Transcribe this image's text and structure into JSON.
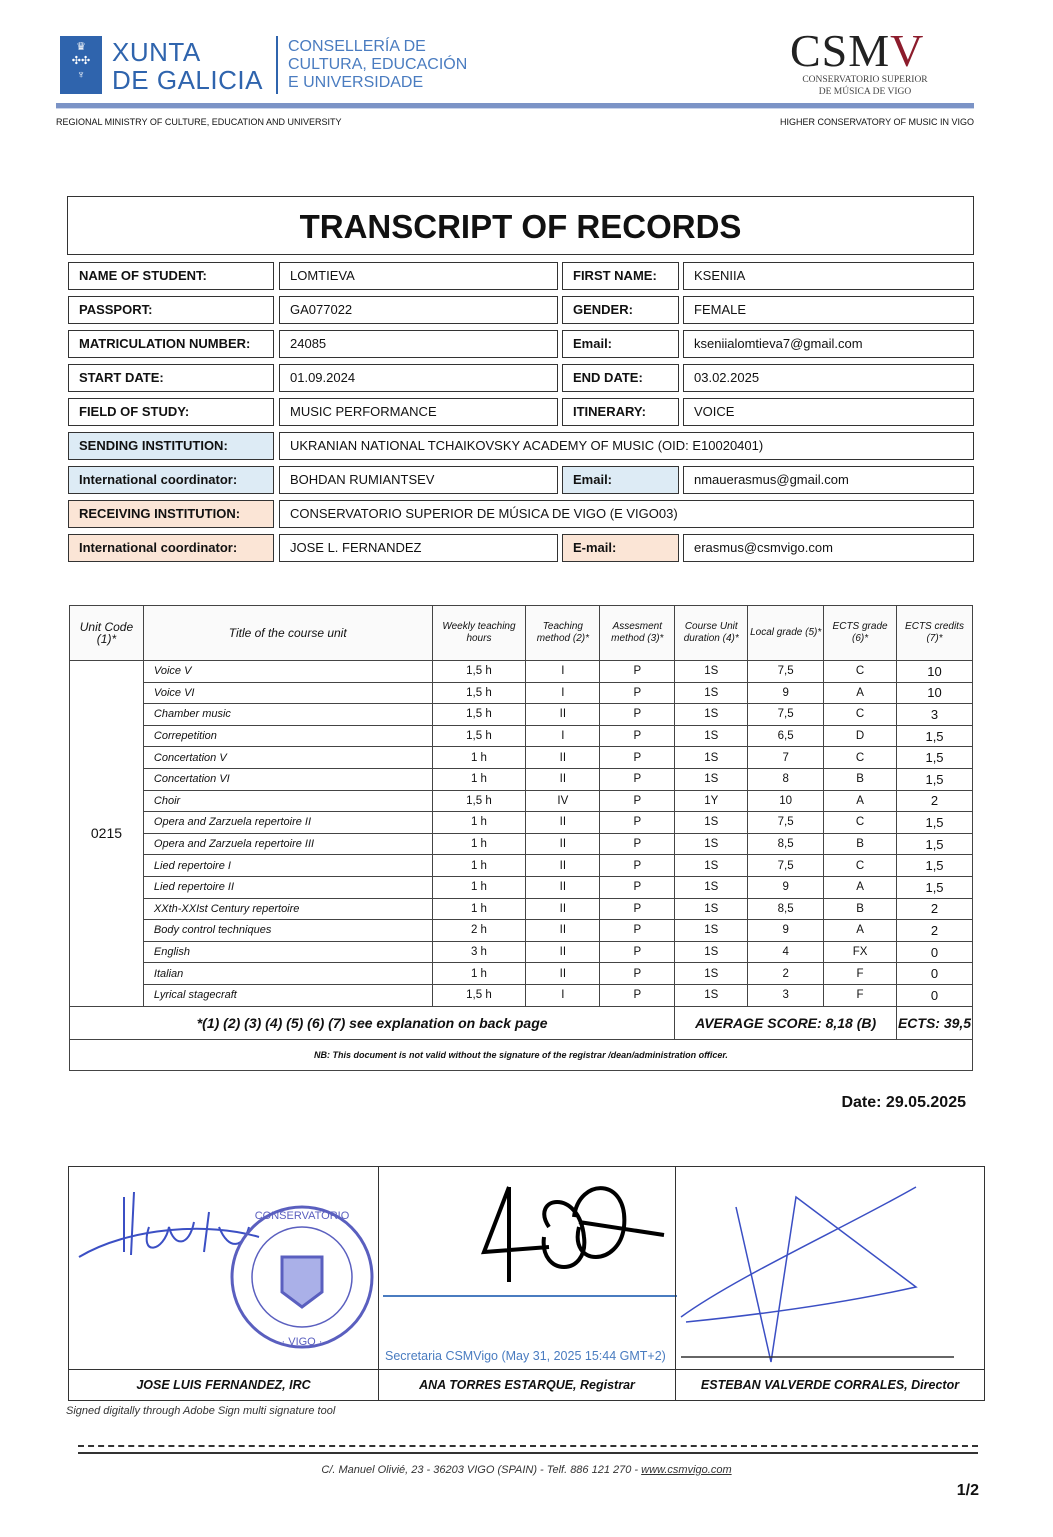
{
  "header": {
    "xunta_line1": "XUNTA",
    "xunta_line2": "DE GALICIA",
    "conselleria_line1": "CONSELLERÍA DE",
    "conselleria_line2": "CULTURA, EDUCACIÓN",
    "conselleria_line3": "E UNIVERSIDADE",
    "csmv_logo": "CSMV",
    "csmv_sub1": "CONSERVATORIO SUPERIOR",
    "csmv_sub2": "DE MÚSICA DE VIGO",
    "left_subtitle": "REGIONAL MINISTRY OF CULTURE, EDUCATION AND UNIVERSITY",
    "right_subtitle": "HIGHER CONSERVATORY OF MUSIC IN VIGO",
    "colors": {
      "xunta_blue": "#2f64ad",
      "csmv_red": "#8c1c2c",
      "rule": "#7b93c6"
    }
  },
  "title": "TRANSCRIPT OF RECORDS",
  "info": {
    "name_label": "NAME OF STUDENT:",
    "name": "LOMTIEVA",
    "first_name_label": "FIRST NAME:",
    "first_name": "KSENIIA",
    "passport_label": "PASSPORT:",
    "passport": "GA077022",
    "gender_label": "GENDER:",
    "gender": "FEMALE",
    "matric_label": "MATRICULATION NUMBER:",
    "matric": "24085",
    "email_label": "Email:",
    "email": "kseniialomtieva7@gmail.com",
    "start_label": "START DATE:",
    "start": "01.09.2024",
    "end_label": "END DATE:",
    "end": "03.02.2025",
    "field_label": "FIELD OF STUDY:",
    "field": "MUSIC PERFORMANCE",
    "itinerary_label": "ITINERARY:",
    "itinerary": "VOICE",
    "sending_label": "SENDING INSTITUTION:",
    "sending": "UKRANIAN NATIONAL TCHAIKOVSKY ACADEMY OF MUSIC (OID: E10020401)",
    "send_coord_label": "International coordinator:",
    "send_coord": "BOHDAN RUMIANTSEV",
    "send_email_label": "Email:",
    "send_email": "nmauerasmus@gmail.com",
    "receiving_label": "RECEIVING INSTITUTION:",
    "receiving": "CONSERVATORIO SUPERIOR DE MÚSICA DE VIGO (E VIGO03)",
    "recv_coord_label": "International coordinator:",
    "recv_coord": "JOSE L. FERNANDEZ",
    "recv_email_label": "E-mail:",
    "recv_email": "erasmus@csmvigo.com",
    "colors": {
      "sending_bg": "#ddebf5",
      "receiving_bg": "#fbe5d6"
    }
  },
  "courses": {
    "headers": [
      "Unit Code (1)*",
      "Title of the course unit",
      "Weekly teaching hours",
      "Teaching method (2)*",
      "Assesment method (3)*",
      "Course Unit duration (4)*",
      "Local grade (5)*",
      "ECTS grade (6)*",
      "ECTS credits (7)*"
    ],
    "unit_code": "0215",
    "rows": [
      [
        "Voice V",
        "1,5 h",
        "I",
        "P",
        "1S",
        "7,5",
        "C",
        "10"
      ],
      [
        "Voice VI",
        "1,5 h",
        "I",
        "P",
        "1S",
        "9",
        "A",
        "10"
      ],
      [
        "Chamber music",
        "1,5 h",
        "II",
        "P",
        "1S",
        "7,5",
        "C",
        "3"
      ],
      [
        "Correpetition",
        "1,5 h",
        "I",
        "P",
        "1S",
        "6,5",
        "D",
        "1,5"
      ],
      [
        "Concertation V",
        "1 h",
        "II",
        "P",
        "1S",
        "7",
        "C",
        "1,5"
      ],
      [
        "Concertation VI",
        "1 h",
        "II",
        "P",
        "1S",
        "8",
        "B",
        "1,5"
      ],
      [
        "Choir",
        "1,5 h",
        "IV",
        "P",
        "1Y",
        "10",
        "A",
        "2"
      ],
      [
        "Opera and Zarzuela repertoire II",
        "1 h",
        "II",
        "P",
        "1S",
        "7,5",
        "C",
        "1,5"
      ],
      [
        "Opera and Zarzuela repertoire III",
        "1 h",
        "II",
        "P",
        "1S",
        "8,5",
        "B",
        "1,5"
      ],
      [
        "Lied repertoire I",
        "1 h",
        "II",
        "P",
        "1S",
        "7,5",
        "C",
        "1,5"
      ],
      [
        "Lied repertoire II",
        "1 h",
        "II",
        "P",
        "1S",
        "9",
        "A",
        "1,5"
      ],
      [
        "XXth-XXIst Century repertoire",
        "1 h",
        "II",
        "P",
        "1S",
        "8,5",
        "B",
        "2"
      ],
      [
        "Body control techniques",
        "2 h",
        "II",
        "P",
        "1S",
        "9",
        "A",
        "2"
      ],
      [
        "English",
        "3 h",
        "II",
        "P",
        "1S",
        "4",
        "FX",
        "0"
      ],
      [
        "Italian",
        "1 h",
        "II",
        "P",
        "1S",
        "2",
        "F",
        "0"
      ],
      [
        "Lyrical stagecraft",
        "1,5 h",
        "I",
        "P",
        "1S",
        "3",
        "F",
        "0"
      ]
    ],
    "footnote": "*(1) (2) (3) (4) (5) (6) (7) see explanation on back page",
    "average": "AVERAGE SCORE: 8,18 (B)",
    "ects_total": "ECTS: 39,5",
    "nb": "NB: This document is not valid without the signature of the registrar /dean/administration officer."
  },
  "date": "Date: 29.05.2025",
  "signatures": {
    "stamp_text": "CONSERVATORIO SUPERIOR DE MÚSICA · VIGO · C. EDUCACIÓN · XUNTA DE GALICIA",
    "secretaria": "Secretaria CSMVigo (May 31, 2025 15:44 GMT+2)",
    "names": [
      "JOSE LUIS FERNANDEZ, IRC",
      "ANA TORRES ESTARQUE, Registrar",
      "ESTEBAN VALVERDE CORRALES, Director"
    ],
    "note": "Signed digitally through Adobe Sign multi signature tool",
    "colors": {
      "ink": "#3b4fc4",
      "stamp": "#5a5fbf",
      "secretaria": "#4a7cc0"
    }
  },
  "footer": {
    "address": "C/. Manuel Olivié, 23   -   36203 VIGO (SPAIN) - Telf. 886 121 270 - ",
    "website": "www.csmvigo.com",
    "page": "1/2"
  }
}
